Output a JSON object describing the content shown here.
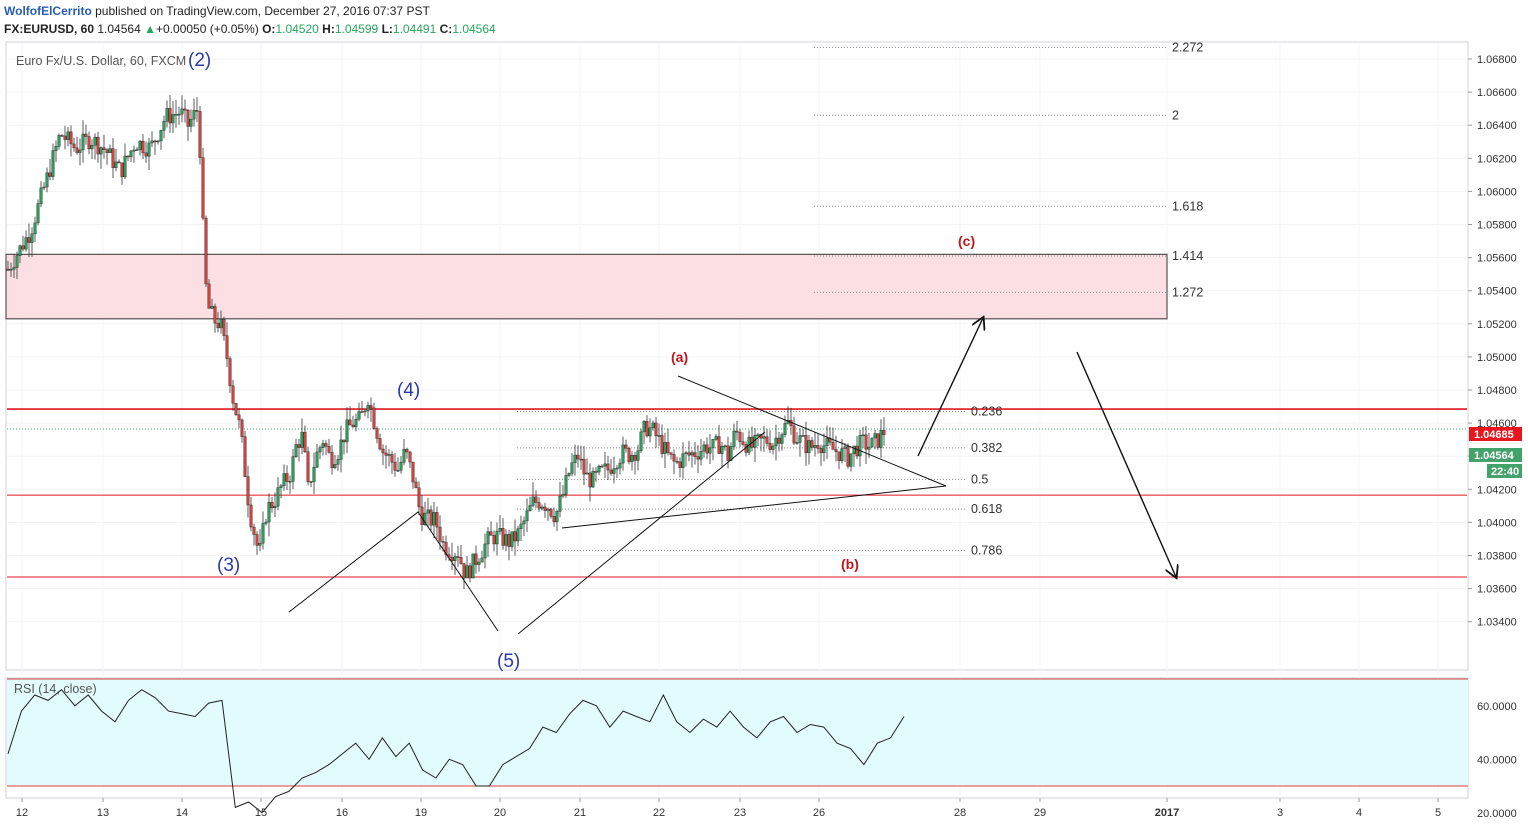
{
  "header": {
    "author": "WolfofElCerrito",
    "published_text": "published on TradingView.com, December 27, 2016 07:37 PST",
    "symbol": "FX:EURUSD, 60",
    "last": "1.04564",
    "change": "+0.00050 (+0.05%)",
    "open_label": "O:",
    "open": "1.04520",
    "high_label": "H:",
    "high": "1.04599",
    "low_label": "L:",
    "low": "1.04491",
    "close_label": "C:",
    "close": "1.04564"
  },
  "chart_title": "Euro Fx/U.S. Dollar, 60, FXCM",
  "colors": {
    "up_candle": "#26a65b",
    "down_candle": "#e0403a",
    "wave_label": "#2a3aa8",
    "abc_label": "#c0161c",
    "zone_fill": "#fcdfe3",
    "rsi_fill": "#e2fbfd"
  },
  "chart_data": {
    "type": "candlestick",
    "y_ticks": [
      "1.06800",
      "1.06600",
      "1.06400",
      "1.06200",
      "1.06000",
      "1.05800",
      "1.05600",
      "1.05400",
      "1.05200",
      "1.05000",
      "1.04800",
      "1.04600",
      "1.04400",
      "1.04200",
      "1.04000",
      "1.03800",
      "1.03600",
      "1.03400"
    ],
    "ylim": [
      1.0332,
      1.0692
    ],
    "x_ticks": [
      "12",
      "13",
      "14",
      "15",
      "16",
      "19",
      "20",
      "21",
      "22",
      "23",
      "26",
      "28",
      "29",
      "2017",
      "3",
      "4",
      "5"
    ],
    "path_points": [
      [
        0,
        1.0553
      ],
      [
        3,
        1.0576
      ],
      [
        5,
        1.0605
      ],
      [
        7,
        1.0635
      ],
      [
        9,
        1.0626
      ],
      [
        11,
        1.0632
      ],
      [
        13,
        1.0625
      ],
      [
        15,
        1.0612
      ],
      [
        17,
        1.063
      ],
      [
        19,
        1.0626
      ],
      [
        21,
        1.0645
      ],
      [
        23,
        1.0648
      ],
      [
        24,
        1.064
      ],
      [
        25.2,
        1.0649
      ],
      [
        25.7,
        1.062
      ],
      [
        26.2,
        1.055
      ],
      [
        26.7,
        1.053
      ],
      [
        27.5,
        1.0522
      ],
      [
        28.3,
        1.052
      ],
      [
        29.2,
        1.05
      ],
      [
        30,
        1.0475
      ],
      [
        31,
        1.0455
      ],
      [
        32.2,
        1.0407
      ],
      [
        33.5,
        1.038
      ],
      [
        34.5,
        1.0408
      ],
      [
        35.5,
        1.0413
      ],
      [
        36.5,
        1.0422
      ],
      [
        37.7,
        1.043
      ],
      [
        38.5,
        1.0448
      ],
      [
        39.3,
        1.0452
      ],
      [
        40,
        1.042
      ],
      [
        41,
        1.0439
      ],
      [
        42,
        1.045
      ],
      [
        43,
        1.0438
      ],
      [
        44,
        1.0443
      ],
      [
        45,
        1.0455
      ],
      [
        46,
        1.046
      ],
      [
        47,
        1.0462
      ],
      [
        48,
        1.0476
      ],
      [
        49,
        1.0458
      ],
      [
        50,
        1.0443
      ],
      [
        51,
        1.0438
      ],
      [
        52,
        1.0432
      ],
      [
        53,
        1.0443
      ],
      [
        54,
        1.0427
      ],
      [
        55,
        1.0405
      ],
      [
        56,
        1.0402
      ],
      [
        57,
        1.0401
      ],
      [
        58,
        1.0387
      ],
      [
        59,
        1.0383
      ],
      [
        60,
        1.0382
      ],
      [
        61,
        1.0368
      ],
      [
        62,
        1.0375
      ],
      [
        63,
        1.0382
      ],
      [
        64,
        1.0389
      ],
      [
        65,
        1.0392
      ],
      [
        66,
        1.039
      ],
      [
        67,
        1.0388
      ],
      [
        68,
        1.0393
      ],
      [
        69,
        1.0402
      ],
      [
        70,
        1.0412
      ],
      [
        71,
        1.0413
      ],
      [
        72,
        1.041
      ],
      [
        73,
        1.0404
      ],
      [
        74,
        1.0417
      ],
      [
        75,
        1.0433
      ],
      [
        76,
        1.044
      ],
      [
        77,
        1.0428
      ],
      [
        78,
        1.0425
      ],
      [
        79,
        1.043
      ],
      [
        80,
        1.0432
      ],
      [
        81,
        1.0438
      ],
      [
        82,
        1.0442
      ],
      [
        83,
        1.0441
      ],
      [
        84,
        1.0445
      ],
      [
        85,
        1.0458
      ],
      [
        86,
        1.0455
      ],
      [
        87,
        1.0448
      ],
      [
        88,
        1.044
      ],
      [
        89,
        1.0435
      ],
      [
        90,
        1.0439
      ],
      [
        91,
        1.0441
      ],
      [
        92,
        1.0443
      ],
      [
        93,
        1.0446
      ],
      [
        94,
        1.0445
      ],
      [
        95,
        1.0448
      ],
      [
        96,
        1.044
      ],
      [
        97,
        1.0455
      ],
      [
        98,
        1.045
      ],
      [
        99,
        1.0445
      ],
      [
        100,
        1.0448
      ],
      [
        101,
        1.045
      ],
      [
        102,
        1.0448
      ],
      [
        103,
        1.0455
      ],
      [
        104,
        1.046
      ],
      [
        105,
        1.0452
      ],
      [
        106,
        1.0448
      ],
      [
        107,
        1.0445
      ],
      [
        108,
        1.0449
      ],
      [
        109,
        1.0446
      ],
      [
        110,
        1.0444
      ],
      [
        111,
        1.0442
      ],
      [
        112,
        1.0439
      ],
      [
        113,
        1.0445
      ],
      [
        114,
        1.0448
      ],
      [
        115,
        1.0446
      ],
      [
        116,
        1.045
      ],
      [
        117,
        1.0456
      ]
    ],
    "rsi": {
      "label": "RSI (14, close)",
      "y_ticks": [
        "60.0000",
        "40.0000",
        "20.0000"
      ],
      "upper": 70,
      "lower": 30,
      "values": [
        42,
        58,
        64,
        62,
        66,
        60,
        64,
        58,
        54,
        62,
        66,
        63,
        58,
        57,
        56,
        61,
        62,
        22,
        24,
        20,
        26,
        28,
        33,
        35,
        38,
        42,
        46,
        40,
        48,
        41,
        46,
        36,
        33,
        40,
        38,
        30,
        30,
        38,
        41,
        44,
        52,
        50,
        57,
        62,
        60,
        52,
        58,
        56,
        54,
        64,
        54,
        50,
        55,
        52,
        58,
        52,
        48,
        54,
        56,
        50,
        53,
        52,
        46,
        44,
        38,
        46,
        48,
        56
      ]
    },
    "horizontal_lines": {
      "red_levels": [
        1.04685,
        1.04165,
        1.0367
      ],
      "price_marker": 1.04564
    },
    "resistance_zone": [
      1.0523,
      1.0562
    ],
    "fib_upper": [
      {
        "label": "2.272",
        "value": 1.0687
      },
      {
        "label": "2",
        "value": 1.0646
      },
      {
        "label": "1.618",
        "value": 1.0591
      },
      {
        "label": "1.414",
        "value": 1.0561
      },
      {
        "label": "1.272",
        "value": 1.0539
      }
    ],
    "fib_lower": [
      {
        "label": "0.236",
        "value": 1.0467
      },
      {
        "label": "0.382",
        "value": 1.0445
      },
      {
        "label": "0.5",
        "value": 1.0426
      },
      {
        "label": "0.618",
        "value": 1.0408
      },
      {
        "label": "0.786",
        "value": 1.0383
      }
    ],
    "price_badges": {
      "red": "1.04685",
      "green": "1.04564",
      "timer": "22:40"
    },
    "wave_labels": [
      "(2)",
      "(3)",
      "(4)",
      "(5)"
    ],
    "abc_labels": [
      "(a)",
      "(b)",
      "(c)"
    ]
  }
}
